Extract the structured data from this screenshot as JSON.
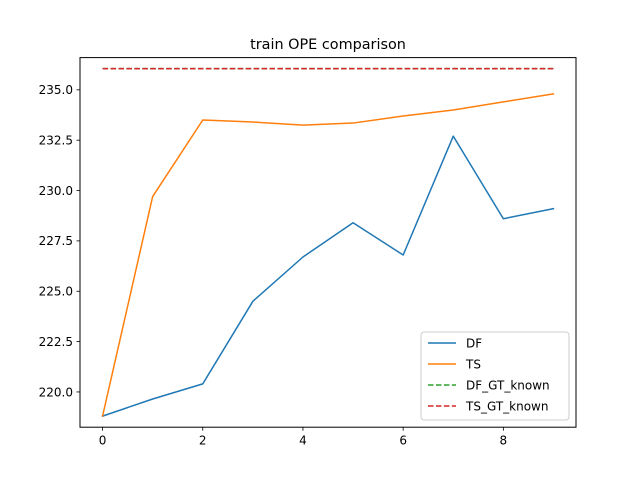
{
  "chart_data": {
    "type": "line",
    "title": "train OPE comparison",
    "xlabel": "",
    "ylabel": "",
    "x": [
      0,
      1,
      2,
      3,
      4,
      5,
      6,
      7,
      8,
      9
    ],
    "xlim": [
      -0.45,
      9.45
    ],
    "ylim": [
      218.25,
      236.6
    ],
    "xticks": [
      0,
      2,
      4,
      6,
      8
    ],
    "yticks": [
      220.0,
      222.5,
      225.0,
      227.5,
      230.0,
      232.5,
      235.0
    ],
    "grid": false,
    "legend_position": "bottom-right",
    "series": [
      {
        "name": "DF",
        "color": "#1f77b4",
        "dash": "solid",
        "values": [
          218.8,
          219.65,
          220.4,
          224.5,
          226.7,
          228.4,
          226.8,
          232.7,
          228.6,
          229.1
        ]
      },
      {
        "name": "TS",
        "color": "#ff7f0e",
        "dash": "solid",
        "values": [
          218.8,
          229.7,
          233.5,
          233.4,
          233.25,
          233.35,
          233.7,
          234.0,
          234.4,
          234.8
        ]
      },
      {
        "name": "DF_GT_known",
        "color": "#2ca02c",
        "dash": "dashed",
        "values": [
          236.05,
          236.05,
          236.05,
          236.05,
          236.05,
          236.05,
          236.05,
          236.05,
          236.05,
          236.05
        ]
      },
      {
        "name": "TS_GT_known",
        "color": "#d62728",
        "dash": "dashed",
        "values": [
          236.05,
          236.05,
          236.05,
          236.05,
          236.05,
          236.05,
          236.05,
          236.05,
          236.05,
          236.05
        ]
      }
    ]
  }
}
